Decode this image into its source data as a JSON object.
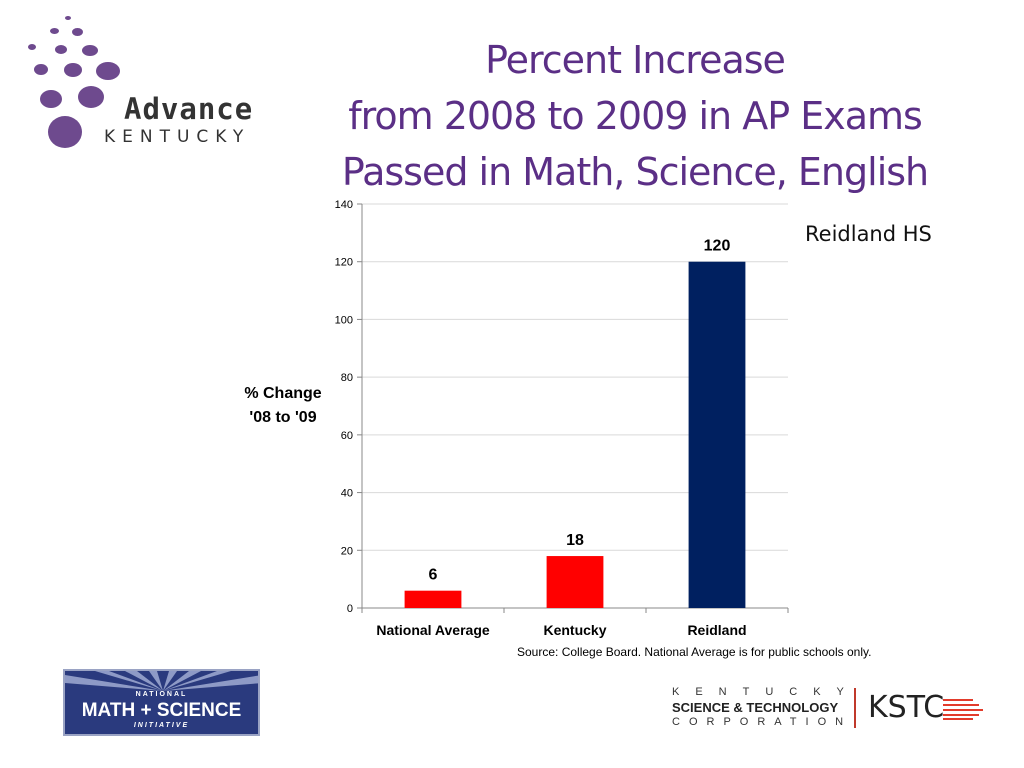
{
  "title": {
    "line1": "Percent Increase",
    "line2": "from 2008 to 2009 in AP Exams",
    "line3": "Passed in Math, Science, English"
  },
  "annotation": "Reidland HS",
  "source_note": "Source: College Board. National Average is for public schools only.",
  "logos": {
    "advance_word": "Advance",
    "advance_sub": "KENTUCKY",
    "nmsi_top": "NATIONAL",
    "nmsi_main": "MATH + SCIENCE",
    "nmsi_bottom": "INITIATIVE",
    "kstc_line1": "KENTUCKY",
    "kstc_line2": "SCIENCE & TECHNOLOGY",
    "kstc_line3": "CORPORATION",
    "kstc_acronym": "KSTC"
  },
  "colors": {
    "title": "#5b2f86",
    "bar_red": "#ff0000",
    "bar_navy": "#002060"
  },
  "chart_data": {
    "type": "bar",
    "ylabel_line1": "% Change",
    "ylabel_line2": "'08 to '09",
    "categories": [
      "National Average",
      "Kentucky",
      "Reidland"
    ],
    "values": [
      6,
      18,
      120
    ],
    "bar_colors": [
      "#ff0000",
      "#ff0000",
      "#002060"
    ],
    "data_labels": [
      "6",
      "18",
      "120"
    ],
    "ylim": [
      0,
      140
    ],
    "yticks": [
      0,
      20,
      40,
      60,
      80,
      100,
      120,
      140
    ],
    "grid": true,
    "legend": "none"
  }
}
